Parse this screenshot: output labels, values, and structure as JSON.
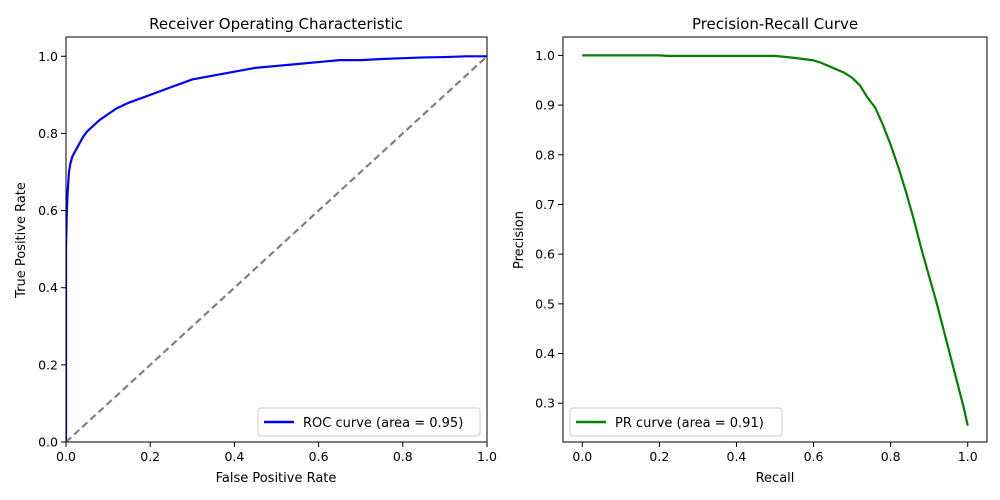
{
  "chart_data": [
    {
      "type": "line",
      "title": "Receiver Operating Characteristic",
      "xlabel": "False Positive Rate",
      "ylabel": "True Positive Rate",
      "xlim": [
        0.0,
        1.0
      ],
      "ylim": [
        0.0,
        1.05
      ],
      "xticks": [
        "0.0",
        "0.2",
        "0.4",
        "0.6",
        "0.8",
        "1.0"
      ],
      "yticks": [
        "0.0",
        "0.2",
        "0.4",
        "0.6",
        "0.8",
        "1.0"
      ],
      "grid": false,
      "legend_position": "lower-right",
      "series": [
        {
          "name": "ROC curve (area = 0.95)",
          "color": "#0000ff",
          "style": "solid",
          "x": [
            0.0,
            0.0,
            0.002,
            0.004,
            0.007,
            0.01,
            0.015,
            0.02,
            0.03,
            0.04,
            0.05,
            0.06,
            0.08,
            0.1,
            0.12,
            0.15,
            0.2,
            0.25,
            0.3,
            0.35,
            0.4,
            0.45,
            0.5,
            0.55,
            0.6,
            0.65,
            0.7,
            0.75,
            0.8,
            0.85,
            0.9,
            0.95,
            1.0
          ],
          "y": [
            0.0,
            0.5,
            0.6,
            0.65,
            0.7,
            0.72,
            0.74,
            0.75,
            0.77,
            0.79,
            0.805,
            0.815,
            0.835,
            0.85,
            0.865,
            0.88,
            0.9,
            0.92,
            0.94,
            0.95,
            0.96,
            0.97,
            0.975,
            0.98,
            0.985,
            0.99,
            0.99,
            0.993,
            0.995,
            0.997,
            0.998,
            1.0,
            1.0
          ]
        },
        {
          "name": "",
          "color": "#808080",
          "style": "dashed",
          "x": [
            0.0,
            1.0
          ],
          "y": [
            0.0,
            1.0
          ]
        }
      ]
    },
    {
      "type": "line",
      "title": "Precision-Recall Curve",
      "xlabel": "Recall",
      "ylabel": "Precision",
      "xlim": [
        -0.05,
        1.05
      ],
      "ylim": [
        0.222,
        1.037
      ],
      "xticks": [
        "0.0",
        "0.2",
        "0.4",
        "0.6",
        "0.8",
        "1.0"
      ],
      "yticks": [
        "0.3",
        "0.4",
        "0.5",
        "0.6",
        "0.7",
        "0.8",
        "0.9",
        "1.0"
      ],
      "grid": false,
      "legend_position": "lower-left",
      "series": [
        {
          "name": "PR curve (area = 0.91)",
          "color": "#008000",
          "style": "solid",
          "x": [
            0.0,
            0.1,
            0.2,
            0.22,
            0.3,
            0.4,
            0.5,
            0.55,
            0.6,
            0.62,
            0.65,
            0.68,
            0.7,
            0.72,
            0.74,
            0.76,
            0.78,
            0.8,
            0.82,
            0.84,
            0.86,
            0.88,
            0.9,
            0.92,
            0.94,
            0.95,
            0.96,
            0.97,
            0.98,
            0.99,
            1.0
          ],
          "y": [
            1.0,
            1.0,
            1.0,
            0.999,
            0.999,
            0.999,
            0.999,
            0.995,
            0.99,
            0.985,
            0.975,
            0.965,
            0.955,
            0.94,
            0.915,
            0.895,
            0.86,
            0.82,
            0.775,
            0.725,
            0.67,
            0.61,
            0.555,
            0.5,
            0.44,
            0.41,
            0.38,
            0.35,
            0.32,
            0.29,
            0.255
          ]
        }
      ]
    }
  ]
}
